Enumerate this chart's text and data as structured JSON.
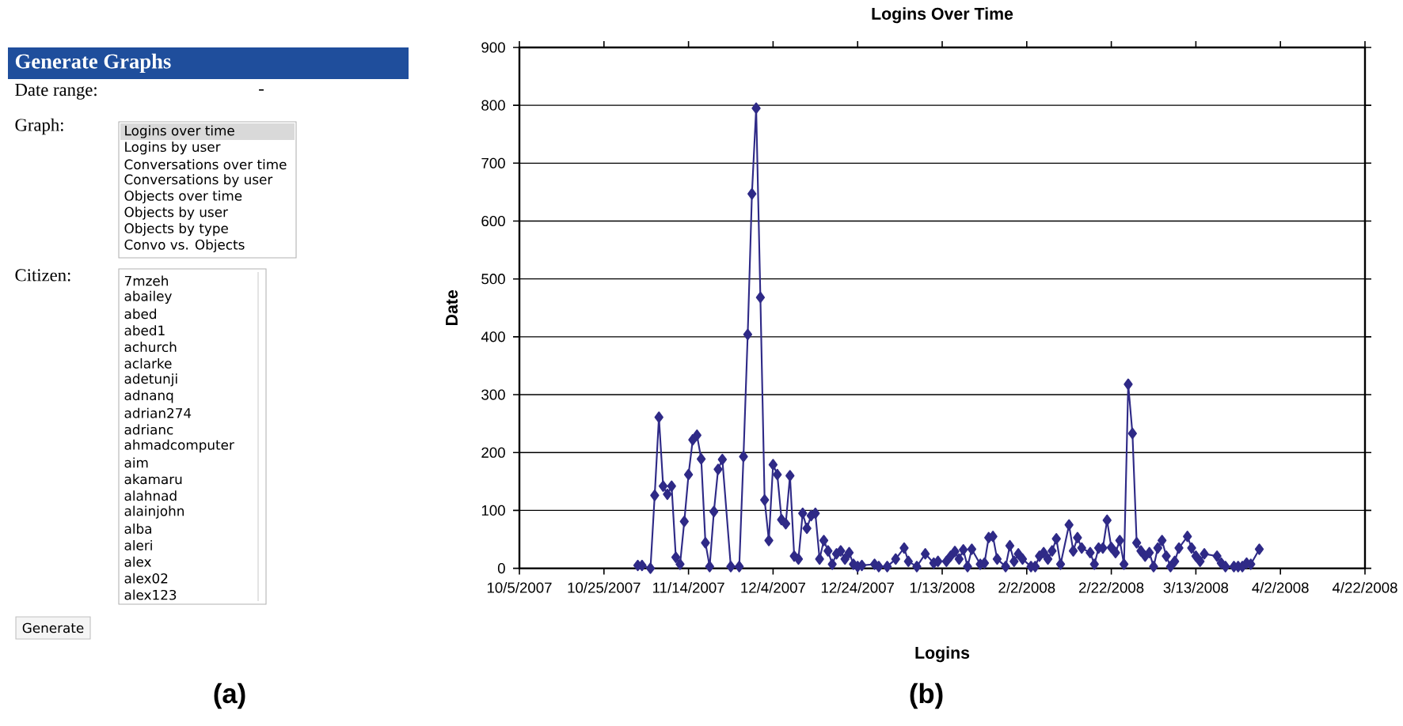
{
  "chart_data": [
    {
      "type": "other",
      "title": "Generate Graphs",
      "annotations": [
        "Date range:",
        "-",
        "Graph:",
        "Logins over time",
        "Logins by user",
        "Conversations over time",
        "Conversations by user",
        "Objects over time",
        "Objects by user",
        "Objects by type",
        "Convo vs. Objects",
        "Citizen:",
        "7mzeh",
        "abailey",
        "abed",
        "abed1",
        "achurch",
        "aclarke",
        "adetunji",
        "adnanq",
        "adrian274",
        "adrianc",
        "ahmadcomputer",
        "aim",
        "akamaru",
        "alahnad",
        "alainjohn",
        "alba",
        "aleri",
        "alex",
        "alex02",
        "alex123",
        "Generate",
        "(a)"
      ]
    },
    {
      "type": "line",
      "title": "Logins Over Time",
      "xlabel": "Logins",
      "ylabel": "Date",
      "annotations": [
        "(b)"
      ],
      "x": [
        "2007-11-02",
        "2007-11-03",
        "2007-11-05",
        "2007-11-06",
        "2007-11-07",
        "2007-11-08",
        "2007-11-09",
        "2007-11-10",
        "2007-11-11",
        "2007-11-12",
        "2007-11-13",
        "2007-11-14",
        "2007-11-15",
        "2007-11-16",
        "2007-11-17",
        "2007-11-18",
        "2007-11-19",
        "2007-11-20",
        "2007-11-21",
        "2007-11-22",
        "2007-11-24",
        "2007-11-26",
        "2007-11-27",
        "2007-11-28",
        "2007-11-29",
        "2007-11-30",
        "2007-12-01",
        "2007-12-02",
        "2007-12-03",
        "2007-12-04",
        "2007-12-05",
        "2007-12-06",
        "2007-12-07",
        "2007-12-08",
        "2007-12-09",
        "2007-12-10",
        "2007-12-11",
        "2007-12-12",
        "2007-12-13",
        "2007-12-14",
        "2007-12-15",
        "2007-12-16",
        "2007-12-17",
        "2007-12-18",
        "2007-12-19",
        "2007-12-20",
        "2007-12-21",
        "2007-12-22",
        "2007-12-23",
        "2007-12-24",
        "2007-12-25",
        "2007-12-28",
        "2007-12-29",
        "2007-12-31",
        "2008-01-02",
        "2008-01-04",
        "2008-01-05",
        "2008-01-07",
        "2008-01-09",
        "2008-01-11",
        "2008-01-12",
        "2008-01-14",
        "2008-01-15",
        "2008-01-16",
        "2008-01-17",
        "2008-01-18",
        "2008-01-19",
        "2008-01-20",
        "2008-01-22",
        "2008-01-23",
        "2008-01-24",
        "2008-01-25",
        "2008-01-26",
        "2008-01-28",
        "2008-01-29",
        "2008-01-30",
        "2008-01-31",
        "2008-02-01",
        "2008-02-03",
        "2008-02-04",
        "2008-02-05",
        "2008-02-06",
        "2008-02-07",
        "2008-02-08",
        "2008-02-09",
        "2008-02-10",
        "2008-02-12",
        "2008-02-13",
        "2008-02-14",
        "2008-02-15",
        "2008-02-17",
        "2008-02-18",
        "2008-02-19",
        "2008-02-20",
        "2008-02-21",
        "2008-02-22",
        "2008-02-23",
        "2008-02-24",
        "2008-02-25",
        "2008-02-26",
        "2008-02-27",
        "2008-02-28",
        "2008-02-29",
        "2008-03-01",
        "2008-03-02",
        "2008-03-03",
        "2008-03-04",
        "2008-03-05",
        "2008-03-06",
        "2008-03-07",
        "2008-03-08",
        "2008-03-09",
        "2008-03-11",
        "2008-03-12",
        "2008-03-13",
        "2008-03-14",
        "2008-03-15",
        "2008-03-18",
        "2008-03-19",
        "2008-03-20",
        "2008-03-22",
        "2008-03-23",
        "2008-03-24",
        "2008-03-25",
        "2008-03-26",
        "2008-03-28"
      ],
      "series": [
        {
          "color": "#2f2a87",
          "values": [
            5,
            5,
            0,
            126,
            261,
            142,
            128,
            142,
            19,
            7,
            81,
            162,
            222,
            230,
            189,
            44,
            3,
            98,
            171,
            188,
            3,
            3,
            193,
            404,
            647,
            795,
            468,
            118,
            48,
            179,
            162,
            84,
            77,
            160,
            21,
            16,
            95,
            69,
            91,
            95,
            16,
            48,
            30,
            7,
            25,
            30,
            16,
            27,
            7,
            3,
            5,
            7,
            3,
            3,
            16,
            35,
            12,
            3,
            25,
            9,
            12,
            12,
            21,
            29,
            16,
            32,
            3,
            33,
            7,
            9,
            53,
            55,
            16,
            3,
            39,
            12,
            25,
            16,
            3,
            3,
            21,
            27,
            16,
            30,
            51,
            7,
            75,
            30,
            53,
            35,
            27,
            7,
            35,
            35,
            83,
            36,
            27,
            48,
            7,
            318,
            233,
            44,
            30,
            21,
            27,
            3,
            35,
            48,
            21,
            3,
            12,
            35,
            55,
            35,
            21,
            12,
            25,
            21,
            9,
            3,
            3,
            3,
            3,
            9,
            7,
            33
          ]
        }
      ],
      "xlim": [
        "2007-10-05",
        "2008-04-22"
      ],
      "xticks": [
        {
          "value": "2007-10-05",
          "label": "10/5/2007"
        },
        {
          "value": "2007-10-25",
          "label": "10/25/2007"
        },
        {
          "value": "2007-11-14",
          "label": "11/14/2007"
        },
        {
          "value": "2007-12-04",
          "label": "12/4/2007"
        },
        {
          "value": "2007-12-24",
          "label": "12/24/2007"
        },
        {
          "value": "2008-01-13",
          "label": "1/13/2008"
        },
        {
          "value": "2008-02-02",
          "label": "2/2/2008"
        },
        {
          "value": "2008-02-22",
          "label": "2/22/2008"
        },
        {
          "value": "2008-03-13",
          "label": "3/13/2008"
        },
        {
          "value": "2008-04-02",
          "label": "4/2/2008"
        },
        {
          "value": "2008-04-22",
          "label": "4/22/2008"
        }
      ],
      "ylim": [
        0,
        900
      ],
      "yticks": [
        0,
        100,
        200,
        300,
        400,
        500,
        600,
        700,
        800,
        900
      ],
      "grid": "y",
      "marker": "diamond",
      "line_style": "solid"
    }
  ]
}
